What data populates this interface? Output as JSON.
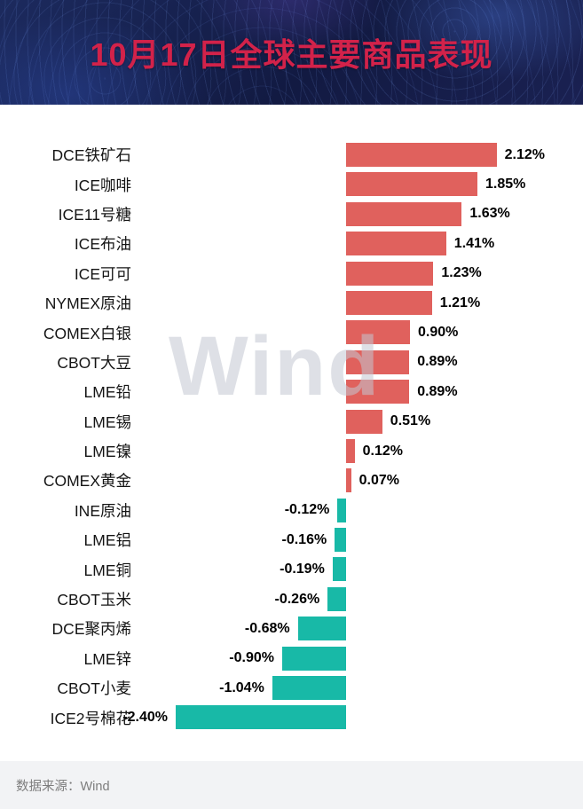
{
  "header": {
    "title": "10月17日全球主要商品表现"
  },
  "watermark": "Wind",
  "footer": {
    "source": "数据来源：Wind"
  },
  "chart_data": {
    "type": "bar",
    "orientation": "horizontal",
    "title": "10月17日全球主要商品表现",
    "unit": "%",
    "positive_color": "#e0615d",
    "negative_color": "#18b9a7",
    "xlim": [
      -2.6,
      2.6
    ],
    "legend": "none",
    "grid": "off",
    "rows": [
      {
        "category": "DCE铁矿石",
        "value": 2.12,
        "label": "2.12%"
      },
      {
        "category": "ICE咖啡",
        "value": 1.85,
        "label": "1.85%"
      },
      {
        "category": "ICE11号糖",
        "value": 1.63,
        "label": "1.63%"
      },
      {
        "category": "ICE布油",
        "value": 1.41,
        "label": "1.41%"
      },
      {
        "category": "ICE可可",
        "value": 1.23,
        "label": "1.23%"
      },
      {
        "category": "NYMEX原油",
        "value": 1.21,
        "label": "1.21%"
      },
      {
        "category": "COMEX白银",
        "value": 0.9,
        "label": "0.90%"
      },
      {
        "category": "CBOT大豆",
        "value": 0.89,
        "label": "0.89%"
      },
      {
        "category": "LME铅",
        "value": 0.89,
        "label": "0.89%"
      },
      {
        "category": "LME锡",
        "value": 0.51,
        "label": "0.51%"
      },
      {
        "category": "LME镍",
        "value": 0.12,
        "label": "0.12%"
      },
      {
        "category": "COMEX黄金",
        "value": 0.07,
        "label": "0.07%"
      },
      {
        "category": "INE原油",
        "value": -0.12,
        "label": "-0.12%"
      },
      {
        "category": "LME铝",
        "value": -0.16,
        "label": "-0.16%"
      },
      {
        "category": "LME铜",
        "value": -0.19,
        "label": "-0.19%"
      },
      {
        "category": "CBOT玉米",
        "value": -0.26,
        "label": "-0.26%"
      },
      {
        "category": "DCE聚丙烯",
        "value": -0.68,
        "label": "-0.68%"
      },
      {
        "category": "LME锌",
        "value": -0.9,
        "label": "-0.90%"
      },
      {
        "category": "CBOT小麦",
        "value": -1.04,
        "label": "-1.04%"
      },
      {
        "category": "ICE2号棉花",
        "value": -2.4,
        "label": "-2.40%"
      }
    ]
  }
}
